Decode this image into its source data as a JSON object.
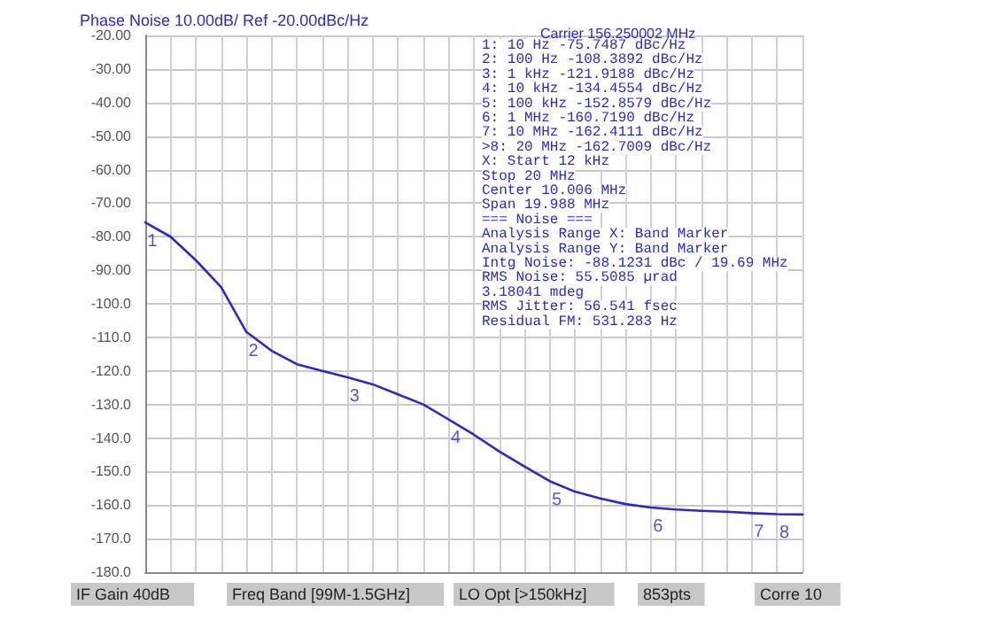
{
  "chart_data": {
    "type": "line",
    "title": "Phase Noise 10.00dB/ Ref -20.00dBc/Hz",
    "subtitle": "Carrier 156.250002 MHz",
    "categories": [
      null,
      null,
      null,
      null,
      null,
      null,
      null,
      null,
      null,
      null,
      null,
      null,
      null,
      null,
      null,
      null,
      null,
      null,
      null,
      null,
      null,
      null,
      null,
      null,
      null,
      null,
      null
    ],
    "series": [
      {
        "color": "#2a2ac8",
        "values": [
          -75.7487,
          -80,
          -87,
          -95,
          -108.3892,
          -114,
          -118,
          -120,
          -121.9188,
          -124,
          -127,
          -130,
          -134.4554,
          -139,
          -144,
          -148.5,
          -152.8579,
          -156,
          -158,
          -159.7,
          -160.719,
          -161.3,
          -161.7,
          -162,
          -162.4111,
          -162.7009,
          -162.8
        ]
      }
    ],
    "ylim": [
      -180,
      -20
    ],
    "yticks": [
      {
        "value": -20,
        "label": "-20.00"
      },
      {
        "value": -30,
        "label": "-30.00"
      },
      {
        "value": -40,
        "label": "-40.00"
      },
      {
        "value": -50,
        "label": "-50.00"
      },
      {
        "value": -60,
        "label": "-60.00"
      },
      {
        "value": -70,
        "label": "-70.00"
      },
      {
        "value": -80,
        "label": "-80.00"
      },
      {
        "value": -90,
        "label": "-90.00"
      },
      {
        "value": -100,
        "label": "-100.0"
      },
      {
        "value": -110,
        "label": "-110.0"
      },
      {
        "value": -120,
        "label": "-120.0"
      },
      {
        "value": -130,
        "label": "-130.0"
      },
      {
        "value": -140,
        "label": "-140.0"
      },
      {
        "value": -150,
        "label": "-150.0"
      },
      {
        "value": -160,
        "label": "-160.0"
      },
      {
        "value": -170,
        "label": "-170.0"
      },
      {
        "value": -180,
        "label": "-180.0"
      }
    ],
    "tick_labels": "y",
    "grid": true,
    "line_style": "solid",
    "annotations": [
      {
        "text": "1",
        "y": -75.7487
      },
      {
        "text": "2",
        "y": -108.3892
      },
      {
        "text": "3",
        "y": -121.9188
      },
      {
        "text": "4",
        "y": -134.4554
      },
      {
        "text": "5",
        "y": -152.8579
      },
      {
        "text": "6",
        "y": -160.719
      },
      {
        "text": "7",
        "y": -162.4111
      },
      {
        "text": "8",
        "y": -162.7009
      },
      "1: 10 Hz -75.7487 dBc/Hz",
      "2: 100 Hz -108.3892 dBc/Hz",
      "3: 1 kHz -121.9188 dBc/Hz",
      "4: 10 kHz -134.4554 dBc/Hz",
      "5: 100 kHz -152.8579 dBc/Hz",
      "6: 1 MHz -160.7190 dBc/Hz",
      "7: 10 MHz -162.4111 dBc/Hz",
      ">8: 20 MHz -162.7009 dBc/Hz",
      "X: Start 12 kHz",
      "Stop 20 MHz",
      "Center 10.006 MHz",
      "Span 19.988 MHz",
      "=== Noise ===",
      "Analysis Range X: Band Marker",
      "Analysis Range Y: Band Marker",
      "Intg Noise: -88.1231 dBc / 19.69 MHz",
      "RMS Noise: 55.5085 µrad",
      "3.18041 mdeg",
      "RMS Jitter: 56.541 fsec",
      "Residual FM: 531.283 Hz",
      "IF Gain 40dB",
      "Freq Band [99M-1.5GHz]",
      "LO Opt [>150kHz]",
      "853pts",
      "Corre 10"
    ]
  }
}
